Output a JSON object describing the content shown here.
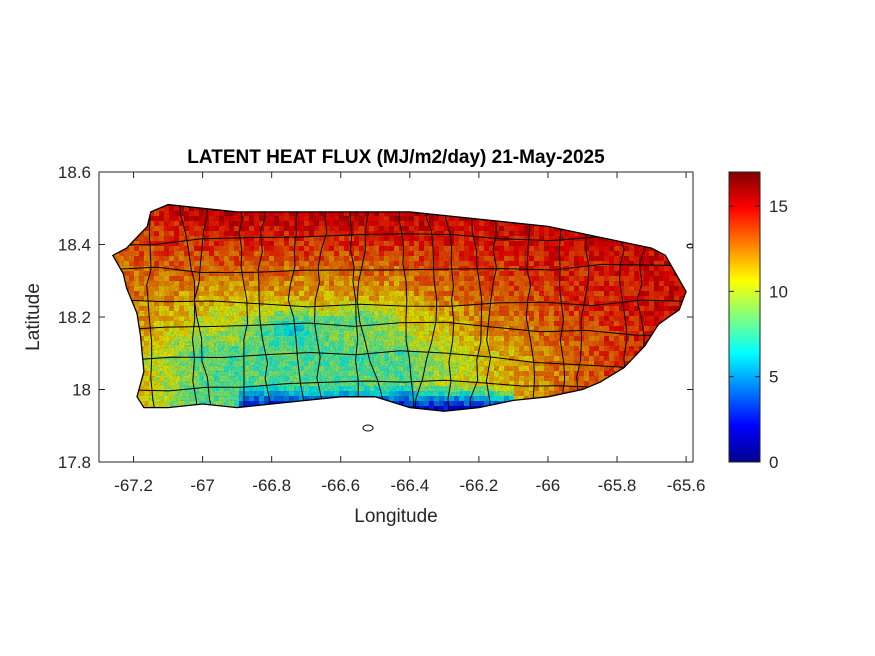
{
  "chart_data": {
    "type": "heatmap",
    "title": "LATENT HEAT FLUX (MJ/m2/day) 21-May-2025",
    "xlabel": "Longitude",
    "ylabel": "Latitude",
    "xlim": [
      -67.3,
      -65.58
    ],
    "ylim": [
      17.8,
      18.6
    ],
    "xticks": [
      -67.2,
      -67,
      -66.8,
      -66.6,
      -66.4,
      -66.2,
      -66,
      -65.8,
      -65.6
    ],
    "xtick_labels": [
      "-67.2",
      "-67",
      "-66.8",
      "-66.6",
      "-66.4",
      "-66.2",
      "-66",
      "-65.8",
      "-65.6"
    ],
    "yticks": [
      17.8,
      18,
      18.2,
      18.4,
      18.6
    ],
    "ytick_labels": [
      "17.8",
      "18",
      "18.2",
      "18.4",
      "18.6"
    ],
    "colorbar": {
      "colormap": "jet",
      "range": [
        0,
        17
      ],
      "ticks": [
        0,
        5,
        10,
        15
      ],
      "tick_labels": [
        "0",
        "5",
        "10",
        "15"
      ]
    },
    "region_pattern": {
      "north_coast": 15.5,
      "east": 15,
      "west": 13,
      "central_interior": 8,
      "south_coast": 2
    },
    "outline": [
      [
        -67.26,
        18.37
      ],
      [
        -67.22,
        18.39
      ],
      [
        -67.19,
        18.42
      ],
      [
        -67.16,
        18.45
      ],
      [
        -67.15,
        18.49
      ],
      [
        -67.1,
        18.51
      ],
      [
        -67.0,
        18.5
      ],
      [
        -66.9,
        18.49
      ],
      [
        -66.8,
        18.49
      ],
      [
        -66.7,
        18.49
      ],
      [
        -66.6,
        18.49
      ],
      [
        -66.5,
        18.49
      ],
      [
        -66.4,
        18.49
      ],
      [
        -66.3,
        18.48
      ],
      [
        -66.2,
        18.47
      ],
      [
        -66.1,
        18.46
      ],
      [
        -66.0,
        18.45
      ],
      [
        -65.9,
        18.43
      ],
      [
        -65.8,
        18.41
      ],
      [
        -65.7,
        18.39
      ],
      [
        -65.66,
        18.37
      ],
      [
        -65.63,
        18.32
      ],
      [
        -65.6,
        18.27
      ],
      [
        -65.62,
        18.22
      ],
      [
        -65.65,
        18.2
      ],
      [
        -65.68,
        18.18
      ],
      [
        -65.72,
        18.12
      ],
      [
        -65.78,
        18.06
      ],
      [
        -65.85,
        18.02
      ],
      [
        -65.9,
        18.0
      ],
      [
        -66.0,
        17.98
      ],
      [
        -66.1,
        17.97
      ],
      [
        -66.2,
        17.95
      ],
      [
        -66.3,
        17.94
      ],
      [
        -66.4,
        17.95
      ],
      [
        -66.5,
        17.98
      ],
      [
        -66.6,
        17.98
      ],
      [
        -66.7,
        17.97
      ],
      [
        -66.8,
        17.96
      ],
      [
        -66.9,
        17.95
      ],
      [
        -67.0,
        17.96
      ],
      [
        -67.1,
        17.95
      ],
      [
        -67.17,
        17.95
      ],
      [
        -67.19,
        17.98
      ],
      [
        -67.17,
        18.05
      ],
      [
        -67.18,
        18.15
      ],
      [
        -67.19,
        18.21
      ],
      [
        -67.22,
        18.28
      ],
      [
        -67.23,
        18.32
      ],
      [
        -67.26,
        18.37
      ]
    ]
  }
}
